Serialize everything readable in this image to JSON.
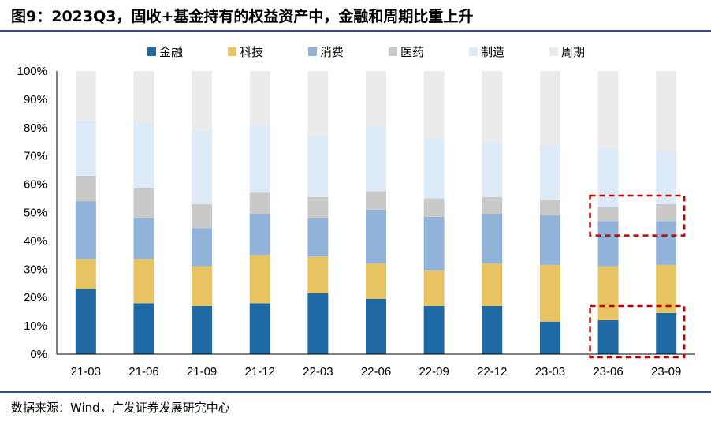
{
  "header": {
    "title": "图9：2023Q3，固收+基金持有的权益资产中，金融和周期比重上升"
  },
  "footer": {
    "source": "数据来源：Wind，广发证券发展研究中心"
  },
  "chart_data": {
    "type": "bar",
    "stacked": true,
    "categories": [
      "21-03",
      "21-06",
      "21-09",
      "21-12",
      "22-03",
      "22-06",
      "22-09",
      "22-12",
      "23-03",
      "23-06",
      "23-09"
    ],
    "series": [
      {
        "name": "金融",
        "color": "#1f6aa5",
        "values": [
          23,
          18,
          17,
          18,
          21.5,
          19.5,
          17,
          17,
          11.5,
          12,
          14.5
        ]
      },
      {
        "name": "科技",
        "color": "#e8c362",
        "values": [
          10.5,
          15.5,
          14,
          17,
          13,
          12.5,
          12.5,
          15,
          20,
          19,
          17
        ]
      },
      {
        "name": "消费",
        "color": "#92b3d9",
        "values": [
          20.5,
          14.5,
          13.5,
          14.5,
          13.5,
          19,
          19,
          17.5,
          17.5,
          16,
          15.5
        ]
      },
      {
        "name": "医药",
        "color": "#c9c9c9",
        "values": [
          9,
          10.5,
          8.5,
          7.5,
          7.5,
          6.5,
          6.5,
          6,
          5.5,
          5,
          6
        ]
      },
      {
        "name": "制造",
        "color": "#ddeaf7",
        "values": [
          19.5,
          23.5,
          26,
          24,
          21.5,
          23,
          21,
          19.5,
          19,
          21,
          18.5
        ]
      },
      {
        "name": "周期",
        "color": "#ebebeb",
        "values": [
          17.5,
          18,
          21,
          19,
          23,
          19.5,
          24,
          25,
          26.5,
          27,
          28.5
        ]
      }
    ],
    "y_ticks": [
      "0%",
      "10%",
      "20%",
      "30%",
      "40%",
      "50%",
      "60%",
      "70%",
      "80%",
      "90%",
      "100%"
    ],
    "ylim": [
      0,
      100
    ],
    "xlabel": "",
    "ylabel": "",
    "legend_position": "top",
    "annotations": [
      {
        "type": "dashed-box",
        "color": "#c00000",
        "categories": [
          "23-06",
          "23-09"
        ],
        "y_range": [
          0,
          17
        ]
      },
      {
        "type": "dashed-box",
        "color": "#c00000",
        "categories": [
          "23-06",
          "23-09"
        ],
        "y_range": [
          43,
          56
        ]
      }
    ]
  }
}
